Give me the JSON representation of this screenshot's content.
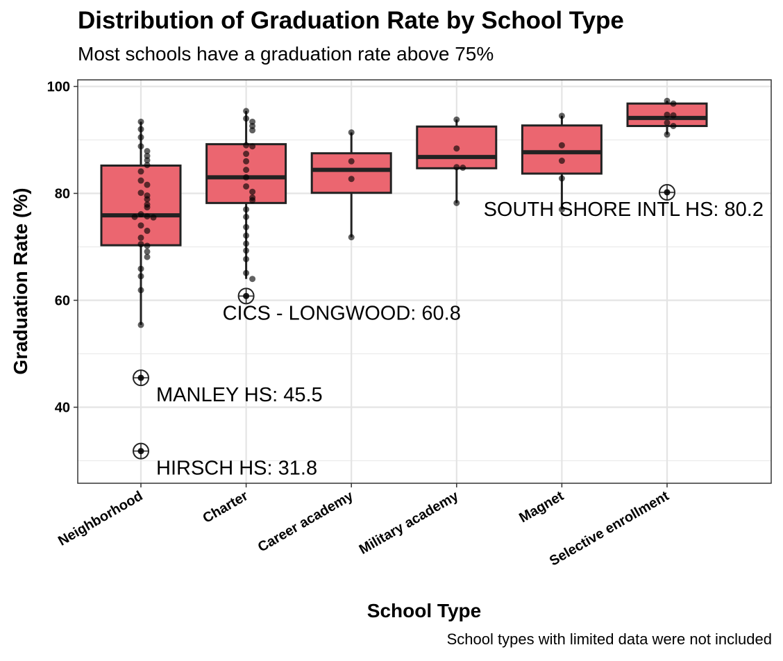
{
  "chart_data": {
    "type": "box",
    "title": "Distribution of Graduation Rate by School Type",
    "subtitle": "Most schools have a graduation rate above 75%",
    "caption": "School types with limited data were not included",
    "xlabel": "School Type",
    "ylabel": "Graduation Rate (%)",
    "ylim": [
      25,
      101
    ],
    "y_ticks": [
      40,
      60,
      80,
      100
    ],
    "grid": true,
    "box_color": "#EB6670",
    "categories": [
      "Neighborhood",
      "Charter",
      "Career academy",
      "Military academy",
      "Magnet",
      "Selective enrollment"
    ],
    "boxes": [
      {
        "category": "Neighborhood",
        "q1": 70.3,
        "median": 75.9,
        "q3": 85.2,
        "whisker_low": 55.4,
        "whisker_high": 93.4
      },
      {
        "category": "Charter",
        "q1": 78.2,
        "median": 83.0,
        "q3": 89.2,
        "whisker_low": 64.0,
        "whisker_high": 95.4
      },
      {
        "category": "Career academy",
        "q1": 80.1,
        "median": 84.4,
        "q3": 87.5,
        "whisker_low": 71.8,
        "whisker_high": 91.4
      },
      {
        "category": "Military academy",
        "q1": 84.7,
        "median": 86.8,
        "q3": 92.5,
        "whisker_low": 78.2,
        "whisker_high": 93.8
      },
      {
        "category": "Magnet",
        "q1": 83.7,
        "median": 87.7,
        "q3": 92.7,
        "whisker_low": 77.0,
        "whisker_high": 94.5
      },
      {
        "category": "Selective enrollment",
        "q1": 92.6,
        "median": 94.1,
        "q3": 96.8,
        "whisker_low": 91.0,
        "whisker_high": 97.3
      }
    ],
    "points": [
      {
        "category": "Neighborhood",
        "values": [
          93.4,
          92.0,
          90.5,
          88.8,
          87.9,
          87.0,
          86.2,
          85.3,
          84.1,
          82.4,
          81.6,
          80.1,
          79.6,
          78.9,
          77.9,
          77.4,
          76.1,
          75.7,
          75.6,
          75.5,
          74.0,
          73.0,
          71.7,
          70.5,
          70.2,
          69.1,
          68.1,
          65.9,
          64.5,
          61.9,
          55.4,
          45.5,
          31.8
        ]
      },
      {
        "category": "Charter",
        "values": [
          95.4,
          94.0,
          93.4,
          92.6,
          91.8,
          89.0,
          88.8,
          87.4,
          86.0,
          84.4,
          83.0,
          81.3,
          80.3,
          79.2,
          78.7,
          77.0,
          75.6,
          73.7,
          72.1,
          70.6,
          69.3,
          67.7,
          65.1,
          64.0,
          60.8
        ]
      },
      {
        "category": "Career academy",
        "values": [
          91.4,
          86.0,
          82.7,
          71.8
        ]
      },
      {
        "category": "Military academy",
        "values": [
          93.8,
          88.4,
          84.9,
          84.8,
          78.2
        ]
      },
      {
        "category": "Magnet",
        "values": [
          94.5,
          89.0,
          86.1,
          82.8,
          77.0
        ]
      },
      {
        "category": "Selective enrollment",
        "values": [
          97.3,
          96.8,
          94.7,
          94.6,
          93.2,
          92.6,
          91.0,
          80.2
        ]
      }
    ],
    "annotations": [
      {
        "category": "Neighborhood",
        "value": 31.8,
        "label": "HIRSCH HS: 31.8"
      },
      {
        "category": "Neighborhood",
        "value": 45.5,
        "label": "MANLEY HS: 45.5"
      },
      {
        "category": "Charter",
        "value": 60.8,
        "label": "CICS - LONGWOOD: 60.8"
      },
      {
        "category": "Selective enrollment",
        "value": 80.2,
        "label": "SOUTH SHORE INTL HS: 80.2"
      }
    ]
  }
}
